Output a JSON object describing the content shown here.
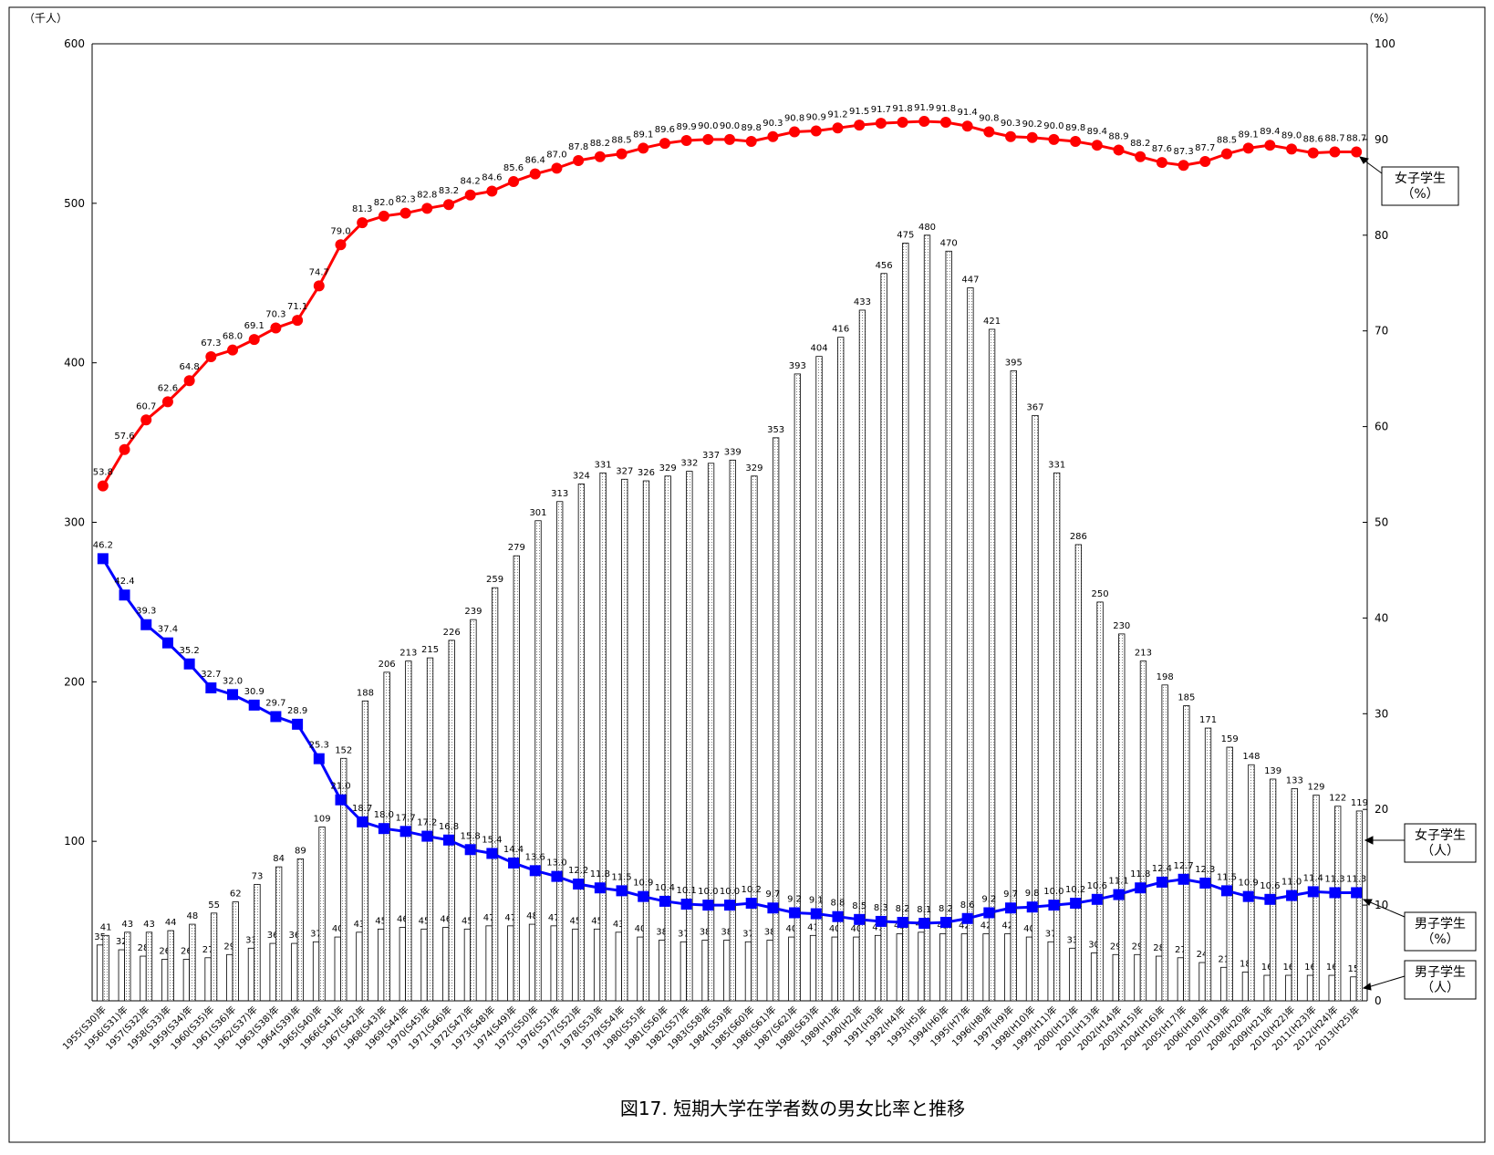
{
  "chart_data": {
    "type": "bar_line",
    "title": "図17. 短期大学在学者数の男女比率と推移",
    "y_label": "（千人）",
    "y2_label": "（%）",
    "categories": [
      "1955(S30)年",
      "1956(S31)年",
      "1957(S32)年",
      "1958(S33)年",
      "1959(S34)年",
      "1960(S35)年",
      "1961(S36)年",
      "1962(S37)年",
      "1963(S38)年",
      "1964(S39)年",
      "1965(S40)年",
      "1966(S41)年",
      "1967(S42)年",
      "1968(S43)年",
      "1969(S44)年",
      "1970(S45)年",
      "1971(S46)年",
      "1972(S47)年",
      "1973(S48)年",
      "1974(S49)年",
      "1975(S50)年",
      "1976(S51)年",
      "1977(S52)年",
      "1978(S53)年",
      "1979(S54)年",
      "1980(S55)年",
      "1981(S56)年",
      "1982(S57)年",
      "1983(S58)年",
      "1984(S59)年",
      "1985(S60)年",
      "1986(S61)年",
      "1987(S62)年",
      "1988(S63)年",
      "1989(H1)年",
      "1990(H2)年",
      "1991(H3)年",
      "1992(H4)年",
      "1993(H5)年",
      "1994(H6)年",
      "1995(H7)年",
      "1996(H8)年",
      "1997(H9)年",
      "1998(H10)年",
      "1999(H11)年",
      "2000(H12)年",
      "2001(H13)年",
      "2002(H14)年",
      "2003(H15)年",
      "2004(H16)年",
      "2005(H17)年",
      "2006(H18)年",
      "2007(H19)年",
      "2008(H20)年",
      "2009(H21)年",
      "2010(H22)年",
      "2011(H23)年",
      "2012(H24)年",
      "2013(H25)年"
    ],
    "ylim": [
      0,
      600
    ],
    "yticks": [
      100,
      200,
      300,
      400,
      500,
      600
    ],
    "y2lim": [
      0,
      100
    ],
    "y2ticks": [
      0,
      10,
      20,
      30,
      40,
      50,
      60,
      70,
      80,
      90,
      100
    ],
    "series": [
      {
        "name": "男子学生",
        "unit": "（人）",
        "type": "bar",
        "color": "#ffffff",
        "values": [
          35,
          32,
          28,
          26,
          26,
          27,
          29,
          33,
          36,
          36,
          37,
          40,
          43,
          45,
          46,
          45,
          46,
          45,
          47,
          47,
          48,
          47,
          45,
          45,
          43,
          40,
          38,
          37,
          38,
          38,
          37,
          38,
          40,
          41,
          40,
          40,
          41,
          42,
          43,
          42,
          42,
          42,
          42,
          40,
          37,
          33,
          30,
          29,
          29,
          28,
          27,
          24,
          21,
          18,
          16,
          16,
          16,
          16,
          15
        ]
      },
      {
        "name": "女子学生",
        "unit": "（人）",
        "type": "bar",
        "color": "#808080",
        "values": [
          41,
          43,
          43,
          44,
          48,
          55,
          62,
          73,
          84,
          89,
          109,
          152,
          188,
          206,
          213,
          215,
          226,
          239,
          259,
          279,
          301,
          313,
          324,
          331,
          327,
          326,
          329,
          332,
          337,
          339,
          329,
          353,
          393,
          404,
          416,
          433,
          456,
          475,
          480,
          470,
          447,
          421,
          395,
          367,
          331,
          286,
          250,
          230,
          213,
          198,
          185,
          171,
          159,
          148,
          139,
          133,
          129,
          122,
          119
        ]
      },
      {
        "name": "女子学生",
        "unit": "（%）",
        "type": "line",
        "axis": "y2",
        "marker": "circle",
        "color": "#ff0000",
        "values": [
          53.8,
          57.6,
          60.7,
          62.6,
          64.8,
          67.3,
          68.0,
          69.1,
          70.3,
          71.1,
          74.7,
          79.0,
          81.3,
          82.0,
          82.3,
          82.8,
          83.2,
          84.2,
          84.6,
          85.6,
          86.4,
          87.0,
          87.8,
          88.2,
          88.5,
          89.1,
          89.6,
          89.9,
          90.0,
          90.0,
          89.8,
          90.3,
          90.8,
          90.9,
          91.2,
          91.5,
          91.7,
          91.8,
          91.9,
          91.8,
          91.4,
          90.8,
          90.3,
          90.2,
          90.0,
          89.8,
          89.4,
          88.9,
          88.2,
          87.6,
          87.3,
          87.7,
          88.5,
          89.1,
          89.4,
          89.0,
          88.6,
          88.7,
          88.7
        ],
        "value_labels": [
          "53.8",
          "57.6",
          "60.7",
          "62.6",
          "64.8",
          "67.3",
          "68.0",
          "69.1",
          "70.3",
          "71.1",
          "74.7",
          "79.0",
          "81.3",
          "82.0",
          "82.3",
          "82.8",
          "83.2",
          "84.2",
          "84.6",
          "85.6",
          "86.4",
          "87.0",
          "87.8",
          "88.2",
          "88.5",
          "89.1",
          "89.6",
          "89.9",
          "90.0",
          "90.0",
          "89.8",
          "90.3",
          "90.8",
          "90.9",
          "91.2",
          "91.5",
          "91.7",
          "91.8",
          "91.9",
          "91.8",
          "91.4",
          "90.8",
          "90.3",
          "90.2",
          "90.0",
          "89.8",
          "89.4",
          "88.9",
          "88.2",
          "87.6",
          "87.3",
          "87.7",
          "88.5",
          "89.1",
          "89.4",
          "89.0",
          "88.6",
          "88.7",
          "88.7"
        ]
      },
      {
        "name": "男子学生",
        "unit": "（%）",
        "type": "line",
        "axis": "y2",
        "marker": "square",
        "color": "#0000ff",
        "values": [
          46.2,
          42.4,
          39.3,
          37.4,
          35.2,
          32.7,
          32.0,
          30.9,
          29.7,
          28.9,
          25.3,
          21.0,
          18.7,
          18.0,
          17.7,
          17.2,
          16.8,
          15.8,
          15.4,
          14.4,
          13.6,
          13.0,
          12.2,
          11.8,
          11.5,
          10.9,
          10.4,
          10.1,
          10.0,
          10.0,
          10.2,
          9.7,
          9.2,
          9.1,
          8.8,
          8.5,
          8.3,
          8.2,
          8.1,
          8.2,
          8.6,
          9.2,
          9.7,
          9.8,
          10.0,
          10.2,
          10.6,
          11.1,
          11.8,
          12.4,
          12.7,
          12.3,
          11.5,
          10.9,
          10.6,
          11.0,
          11.4,
          11.3,
          11.3
        ],
        "value_labels": [
          "46.2",
          "42.4",
          "39.3",
          "37.4",
          "35.2",
          "32.7",
          "32.0",
          "30.9",
          "29.7",
          "28.9",
          "25.3",
          "21.0",
          "18.7",
          "18.0",
          "17.7",
          "17.2",
          "16.8",
          "15.8",
          "15.4",
          "14.4",
          "13.6",
          "13.0",
          "12.2",
          "11.8",
          "11.5",
          "10.9",
          "10.4",
          "10.1",
          "10.0",
          "10.0",
          "10.2",
          "9.7",
          "9.2",
          "9.1",
          "8.8",
          "8.5",
          "8.3",
          "8.2",
          "8.1",
          "8.2",
          "8.6",
          "9.2",
          "9.7",
          "9.8",
          "10.0",
          "10.2",
          "10.6",
          "11.1",
          "11.8",
          "12.4",
          "12.7",
          "12.3",
          "11.5",
          "10.9",
          "10.6",
          "11.0",
          "11.4",
          "11.3",
          "11.3"
        ]
      }
    ]
  }
}
